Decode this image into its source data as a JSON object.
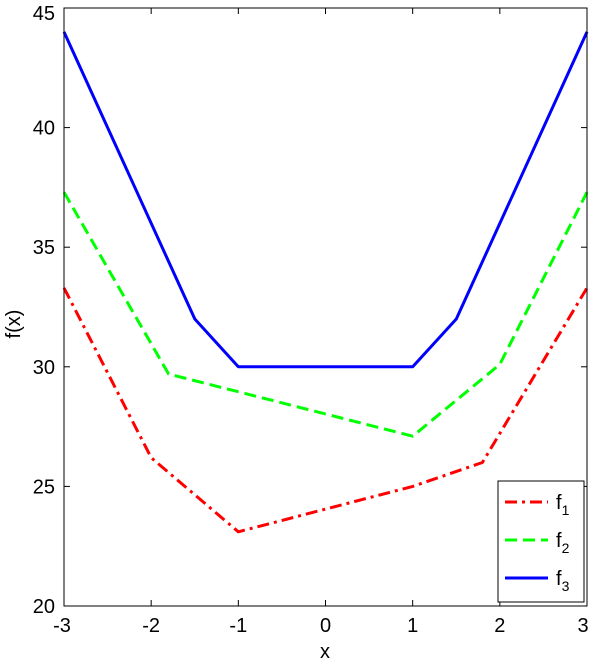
{
  "chart_data": {
    "type": "line",
    "xlabel": "x",
    "ylabel": "f(x)",
    "xlim": [
      -3,
      3
    ],
    "ylim": [
      20,
      45
    ],
    "xticks": [
      "-3",
      "-2",
      "-1",
      "0",
      "1",
      "2",
      "3"
    ],
    "yticks": [
      "20",
      "25",
      "30",
      "35",
      "40",
      "45"
    ],
    "grid": false,
    "legend_position": "bottom-right",
    "series": [
      {
        "name_base": "f",
        "name_sub": "1",
        "color": "#ff0000",
        "dash": "dash-dot",
        "x": [
          -3,
          -2,
          -1,
          1,
          1.8,
          3
        ],
        "y": [
          33.3,
          26.2,
          23.1,
          25,
          26,
          33.3
        ]
      },
      {
        "name_base": "f",
        "name_sub": "2",
        "color": "#00ff00",
        "dash": "dashed",
        "x": [
          -3,
          -1.8,
          1,
          2,
          3
        ],
        "y": [
          37.3,
          29.7,
          27.1,
          30.1,
          37.3
        ]
      },
      {
        "name_base": "f",
        "name_sub": "3",
        "color": "#0000ff",
        "dash": "solid",
        "x": [
          -3,
          -1.5,
          -1,
          1,
          1.5,
          3
        ],
        "y": [
          44,
          32,
          30,
          30,
          32,
          44
        ]
      }
    ]
  }
}
